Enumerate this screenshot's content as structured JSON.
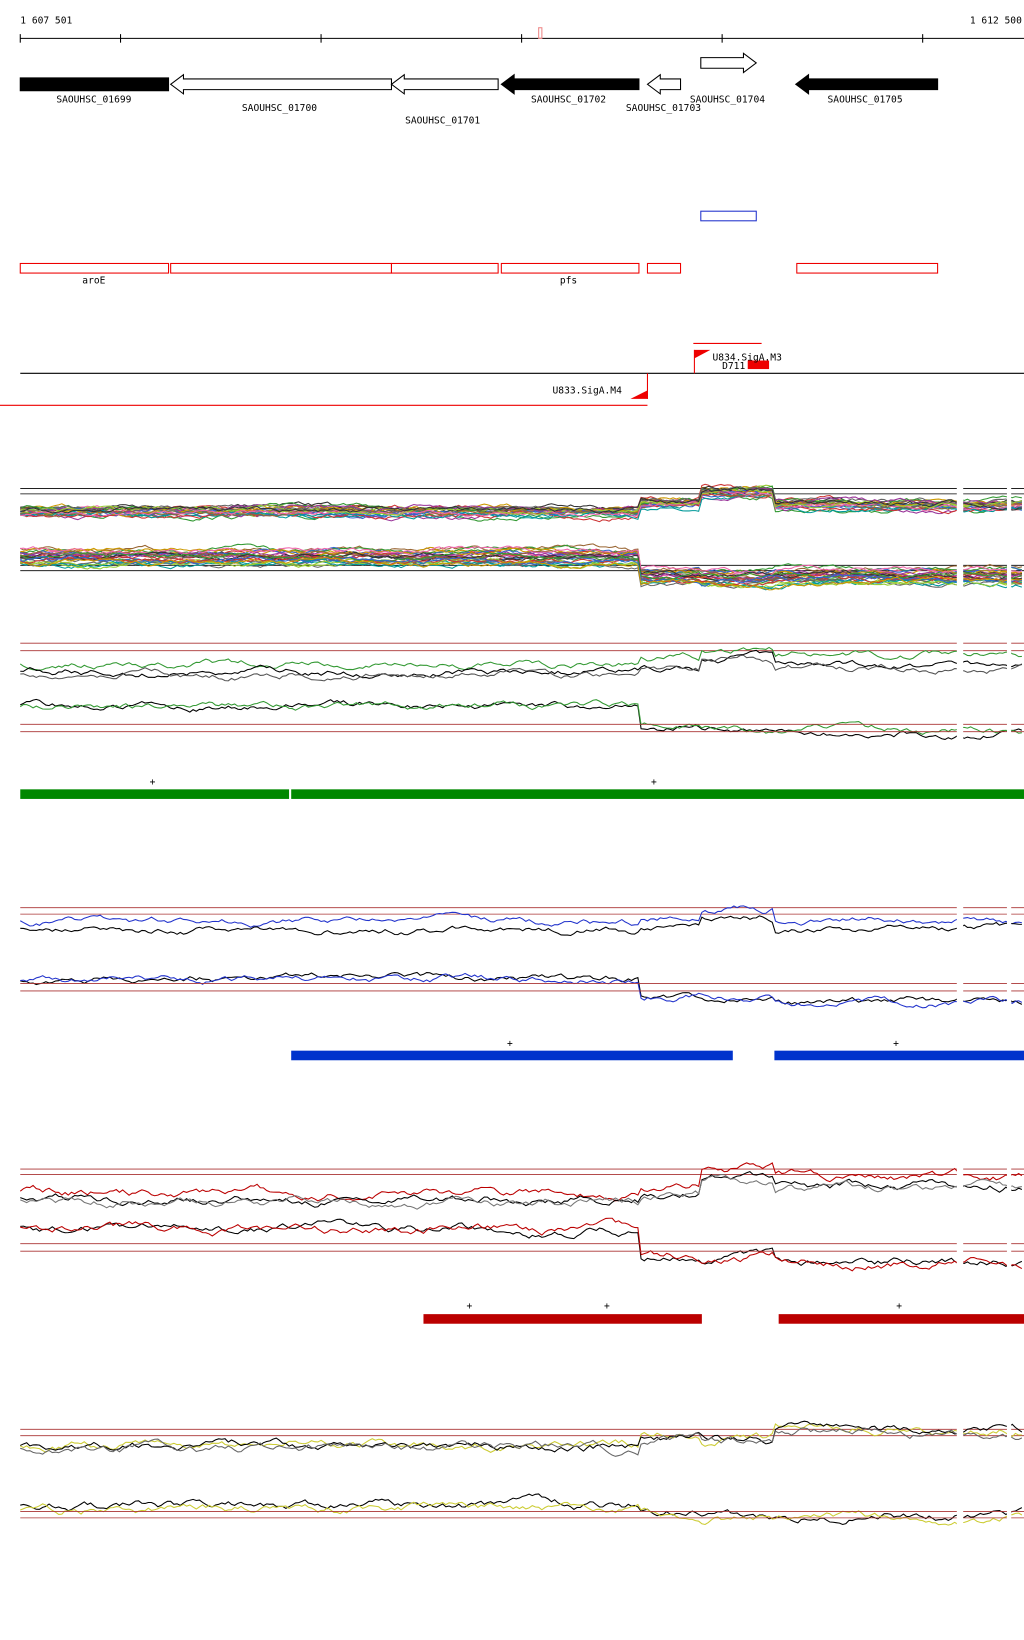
{
  "ruler": {
    "start": "1 607 501",
    "end": "1 612 500"
  },
  "genes": [
    {
      "label": "SAOUHSC_01699"
    },
    {
      "label": "SAOUHSC_01700"
    },
    {
      "label": "SAOUHSC_01701"
    },
    {
      "label": "SAOUHSC_01702"
    },
    {
      "label": "SAOUHSC_01703"
    },
    {
      "label": "SAOUHSC_01704"
    },
    {
      "label": "SAOUHSC_01705"
    }
  ],
  "operons": [
    {
      "label": "aroE"
    },
    {
      "label": "pfs"
    }
  ],
  "promoters": [
    {
      "label": "U834.SigA.M3"
    },
    {
      "label": "D711"
    },
    {
      "label": "U833.SigA.M4"
    }
  ],
  "tracks": [
    {
      "marks": [
        "+",
        "+"
      ]
    },
    {
      "marks": [
        "+",
        "+"
      ]
    },
    {
      "marks": [
        "+",
        "+",
        "+"
      ]
    }
  ]
}
